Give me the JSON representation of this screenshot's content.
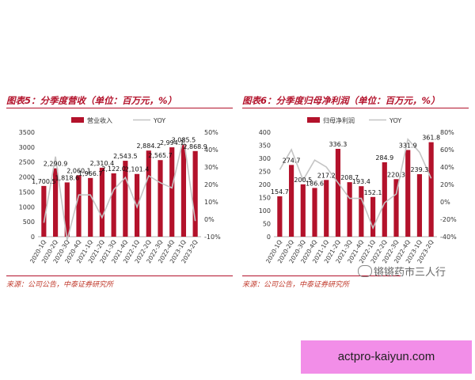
{
  "left": {
    "title": "图表5：分季度营收（单位：百万元，%）",
    "source": "来源：公司公告，中泰证券研究所"
  },
  "right": {
    "title": "图表6：分季度归母净利润（单位：百万元，%）",
    "source": "来源：公司公告，中泰证券研究所"
  },
  "watermark": "锵锵药市三人行",
  "banner": "actpro-kaiyun.com",
  "colors": {
    "bar": "#b3122b",
    "line": "#c4c4c4",
    "accent": "#b3122b"
  },
  "chart_data": [
    {
      "type": "bar",
      "categories": [
        "2020-1Q",
        "2020-2Q",
        "2020-3Q",
        "2020-4Q",
        "2021-1Q",
        "2021-2Q",
        "2021-3Q",
        "2021-4Q",
        "2022-1Q",
        "2022-2Q",
        "2022-3Q",
        "2022-4Q",
        "2023-1Q",
        "2023-2Q"
      ],
      "series": [
        {
          "name": "营业收入",
          "axis": "left",
          "values": [
            1700.5,
            2290.9,
            1818.6,
            2060.1,
            1966.7,
            2310.4,
            2122.0,
            2543.5,
            2101.4,
            2884.2,
            2565.7,
            2994.1,
            3085.5,
            2868.9
          ]
        },
        {
          "name": "YOY",
          "axis": "right",
          "type": "line",
          "values": [
            -2,
            36,
            -12,
            14,
            14,
            1,
            17,
            24,
            7,
            25,
            21,
            18,
            47,
            -1
          ]
        }
      ],
      "data_labels": [
        "1,700.5",
        "2,290.9",
        "1,818.6",
        "2,060.1",
        "1,966.7",
        "2,310.4",
        "2,122.0",
        "2,543.5",
        "2,101.4",
        "2,884.2",
        "2,565.7",
        "2,994.1",
        "3,085.5",
        "2,868.9"
      ],
      "ylim": [
        0,
        3500
      ],
      "yticks": [
        "0",
        "500",
        "1000",
        "1500",
        "2000",
        "2500",
        "3000",
        "3500"
      ],
      "y2lim": [
        -10,
        50
      ],
      "y2ticks": [
        "-10%",
        "0%",
        "10%",
        "20%",
        "30%",
        "40%",
        "50%"
      ],
      "legend": "top"
    },
    {
      "type": "bar",
      "categories": [
        "2020-1Q",
        "2020-2Q",
        "2020-3Q",
        "2020-4Q",
        "2021-1Q",
        "2021-2Q",
        "2021-3Q",
        "2021-4Q",
        "2022-1Q",
        "2022-2Q",
        "2022-3Q",
        "2022-4Q",
        "2023-1Q",
        "2023-2Q"
      ],
      "series": [
        {
          "name": "归母净利润",
          "axis": "left",
          "values": [
            154.7,
            274.7,
            200.5,
            186.6,
            217.2,
            336.3,
            208.7,
            193.4,
            152.1,
            284.9,
            220.3,
            331.9,
            239.3,
            361.8
          ]
        },
        {
          "name": "YOY",
          "axis": "right",
          "type": "line",
          "values": [
            37,
            60,
            25,
            48,
            40,
            22,
            4,
            4,
            -30,
            -1,
            9,
            72,
            57,
            27
          ]
        }
      ],
      "data_labels": [
        "154.7",
        "274.7",
        "200.5",
        "186.6",
        "217.2",
        "336.3",
        "208.7",
        "193.4",
        "152.1",
        "284.9",
        "220.3",
        "331.9",
        "239.3",
        "361.8"
      ],
      "ylim": [
        0,
        400
      ],
      "yticks": [
        "0",
        "50",
        "100",
        "150",
        "200",
        "250",
        "300",
        "350",
        "400"
      ],
      "y2lim": [
        -40,
        80
      ],
      "y2ticks": [
        "-40%",
        "-20%",
        "0%",
        "20%",
        "40%",
        "60%",
        "80%"
      ],
      "legend": "top"
    }
  ]
}
